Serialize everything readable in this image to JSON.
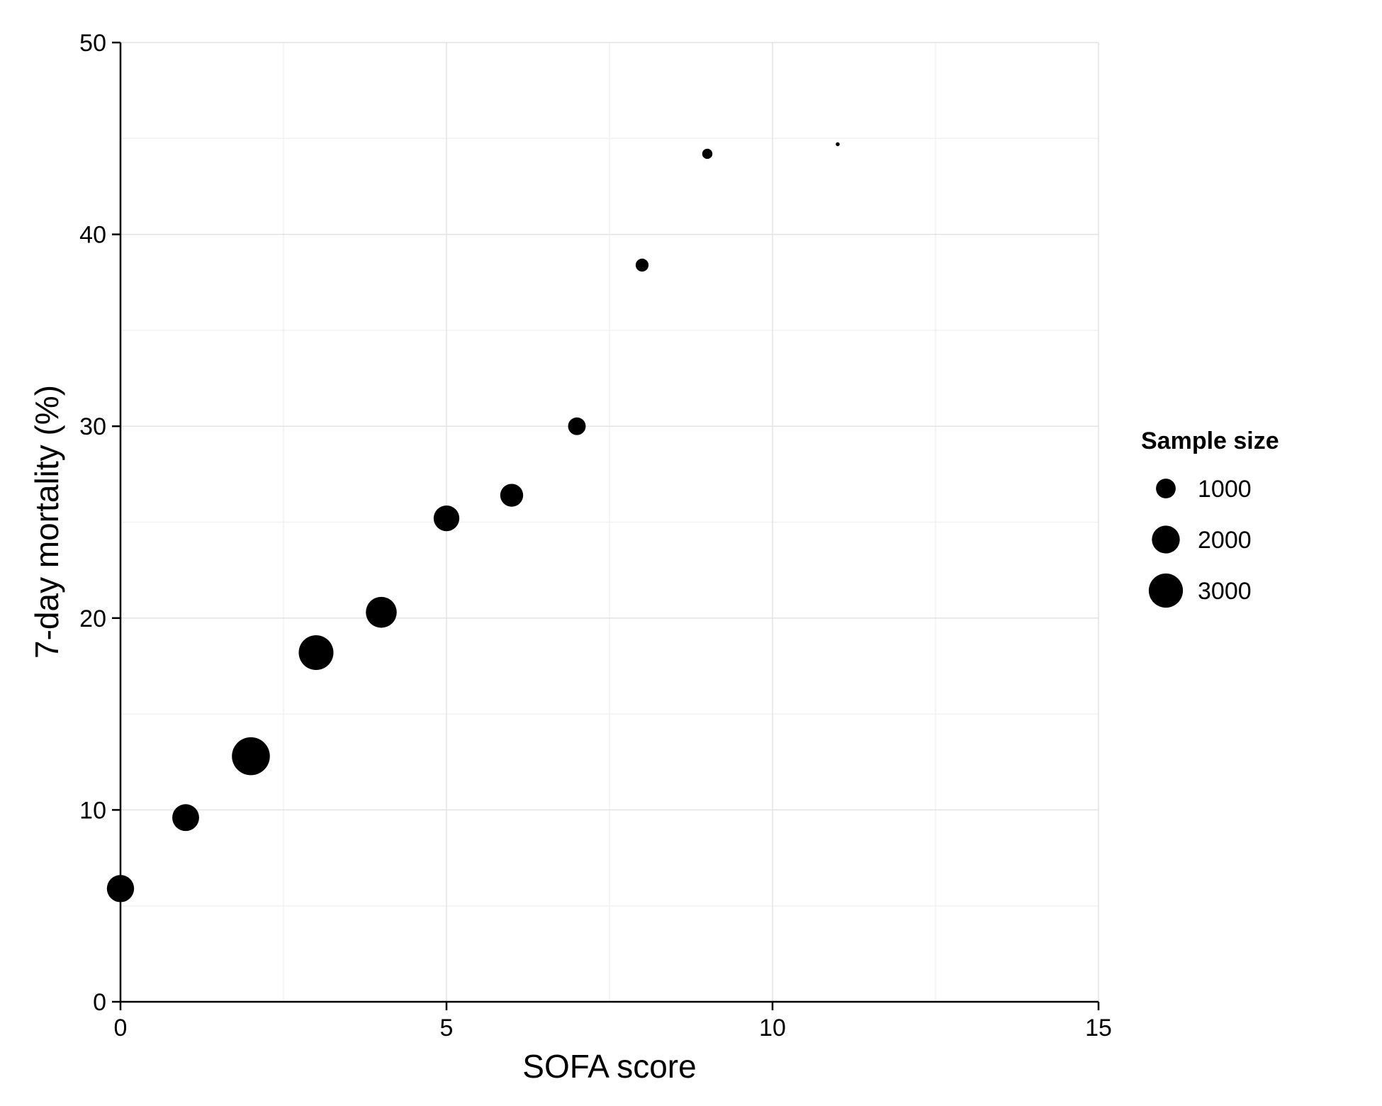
{
  "chart_data": {
    "type": "scatter",
    "title": "",
    "xlabel": "SOFA score",
    "ylabel": "7-day mortality (%)",
    "xlim": [
      0,
      15
    ],
    "ylim": [
      0,
      50
    ],
    "x_ticks": [
      0,
      5,
      10,
      15
    ],
    "y_ticks": [
      0,
      10,
      20,
      30,
      40,
      50
    ],
    "grid": true,
    "legend": {
      "title": "Sample size",
      "placement": "right",
      "entries": [
        {
          "label": "1000",
          "value": 1000
        },
        {
          "label": "2000",
          "value": 2000
        },
        {
          "label": "3000",
          "value": 3000
        }
      ]
    },
    "points": [
      {
        "x": 0,
        "y": 5.9,
        "size": 1900
      },
      {
        "x": 1,
        "y": 9.6,
        "size": 1850
      },
      {
        "x": 2,
        "y": 12.8,
        "size": 3700
      },
      {
        "x": 3,
        "y": 18.2,
        "size": 3100
      },
      {
        "x": 4,
        "y": 20.3,
        "size": 2450
      },
      {
        "x": 5,
        "y": 25.2,
        "size": 1700
      },
      {
        "x": 6,
        "y": 26.4,
        "size": 1350
      },
      {
        "x": 7,
        "y": 30.0,
        "size": 800
      },
      {
        "x": 8,
        "y": 38.4,
        "size": 430
      },
      {
        "x": 9,
        "y": 44.2,
        "size": 270
      },
      {
        "x": 11,
        "y": 44.7,
        "size": 40
      }
    ],
    "marker_color": "#000000"
  }
}
